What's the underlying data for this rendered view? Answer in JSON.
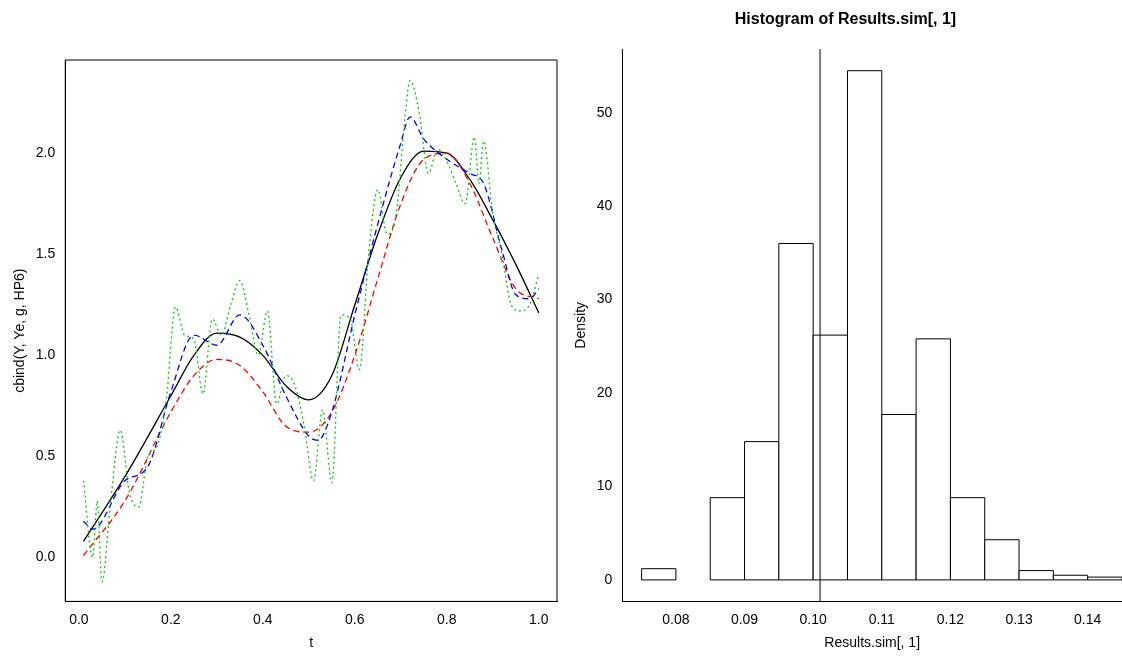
{
  "chart_data": [
    {
      "type": "line",
      "xlabel": "t",
      "ylabel": "cbind(Y, Ye, g, HP6)",
      "xlim": [
        -0.0296,
        1.0396
      ],
      "ylim": [
        -0.217,
        2.461
      ],
      "xticks": [
        {
          "value": 0,
          "label": "0.0"
        },
        0.2,
        0.4,
        0.6,
        0.8,
        {
          "value": 1,
          "label": "1.0"
        }
      ],
      "yticks": [
        {
          "value": 0,
          "label": "0.0"
        },
        0.5,
        {
          "value": 1,
          "label": "1.0"
        },
        1.5,
        {
          "value": 2,
          "label": "2.0"
        }
      ],
      "grid": false,
      "legend": false,
      "marker": "none",
      "series": [
        {
          "color": "#00cd00",
          "line_style": "dotted",
          "x": [
            0.01,
            0.03,
            0.04,
            0.05,
            0.07,
            0.09,
            0.11,
            0.13,
            0.15,
            0.17,
            0.19,
            0.21,
            0.23,
            0.25,
            0.27,
            0.29,
            0.31,
            0.33,
            0.35,
            0.37,
            0.39,
            0.41,
            0.43,
            0.45,
            0.47,
            0.49,
            0.51,
            0.53,
            0.55,
            0.57,
            0.59,
            0.61,
            0.63,
            0.65,
            0.67,
            0.69,
            0.71,
            0.72,
            0.74,
            0.76,
            0.78,
            0.8,
            0.82,
            0.84,
            0.86,
            0.87,
            0.88,
            0.9,
            0.92,
            0.94,
            0.96,
            0.98,
            1.0
          ],
          "values": [
            0.38,
            0.0,
            0.28,
            -0.12,
            0.3,
            0.63,
            0.32,
            0.25,
            0.5,
            0.55,
            0.78,
            1.24,
            1.1,
            1.08,
            0.81,
            1.18,
            1.1,
            1.25,
            1.37,
            1.2,
            1.0,
            1.22,
            0.76,
            0.9,
            0.85,
            0.65,
            0.38,
            0.73,
            0.37,
            1.2,
            1.18,
            0.93,
            1.5,
            1.82,
            1.6,
            1.7,
            2.2,
            2.36,
            2.2,
            1.9,
            2.02,
            1.96,
            1.85,
            1.75,
            2.08,
            1.85,
            2.06,
            1.7,
            1.5,
            1.25,
            1.22,
            1.25,
            1.4
          ]
        },
        {
          "color": "#0000ff",
          "line_style": "dashed",
          "x": [
            0.01,
            0.03,
            0.1,
            0.15,
            0.2,
            0.25,
            0.3,
            0.35,
            0.4,
            0.45,
            0.5,
            0.52,
            0.55,
            0.6,
            0.65,
            0.7,
            0.72,
            0.75,
            0.8,
            0.85,
            0.88,
            0.92,
            0.95,
            0.98,
            1.0
          ],
          "values": [
            0.18,
            0.14,
            0.38,
            0.45,
            0.82,
            1.1,
            1.05,
            1.2,
            1.05,
            0.8,
            0.6,
            0.58,
            0.72,
            1.2,
            1.65,
            2.05,
            2.18,
            2.07,
            1.97,
            1.9,
            1.85,
            1.52,
            1.3,
            1.28,
            1.33
          ]
        },
        {
          "color": "#ff0000",
          "line_style": "dashed",
          "x": [
            0.01,
            0.1,
            0.2,
            0.25,
            0.3,
            0.35,
            0.4,
            0.45,
            0.5,
            0.55,
            0.6,
            0.65,
            0.7,
            0.75,
            0.8,
            0.85,
            0.9,
            0.95,
            1.0
          ],
          "values": [
            0.01,
            0.28,
            0.72,
            0.9,
            0.98,
            0.95,
            0.82,
            0.65,
            0.62,
            0.72,
            1.0,
            1.38,
            1.75,
            1.97,
            2.0,
            1.85,
            1.58,
            1.33,
            1.28
          ]
        },
        {
          "color": "#000000",
          "line_style": "solid",
          "x": [
            0.01,
            0.1,
            0.2,
            0.25,
            0.3,
            0.35,
            0.4,
            0.45,
            0.5,
            0.55,
            0.6,
            0.65,
            0.7,
            0.75,
            0.8,
            0.85,
            0.9,
            0.95,
            1.0
          ],
          "values": [
            0.08,
            0.4,
            0.8,
            1.0,
            1.11,
            1.09,
            1.0,
            0.85,
            0.78,
            0.9,
            1.25,
            1.6,
            1.88,
            2.01,
            2.0,
            1.87,
            1.67,
            1.45,
            1.21
          ]
        }
      ]
    },
    {
      "type": "histogram",
      "title": "Histogram of Results.sim[, 1]",
      "xlabel": "Results.sim[, 1]",
      "ylabel": "Density",
      "bins": [
        0.075,
        0.08,
        0.085,
        0.09,
        0.095,
        0.1,
        0.105,
        0.11,
        0.115,
        0.12,
        0.125,
        0.13,
        0.135,
        0.14,
        0.145
      ],
      "values": [
        1.2,
        0,
        8.8,
        14.8,
        36,
        26.2,
        54.5,
        17.7,
        25.8,
        8.8,
        4.3,
        1.0,
        0.5,
        0.3
      ],
      "color": "#ffffff",
      "xlim": [
        0.0722,
        0.145
      ],
      "ylim": [
        -2.3,
        56.8
      ],
      "xticks": [
        0.08,
        0.09,
        {
          "value": 0.1,
          "label": "0.10"
        },
        0.11,
        0.12,
        0.13,
        0.14
      ],
      "yticks": [
        0,
        10,
        20,
        30,
        40,
        50
      ],
      "grid": false,
      "legend": false,
      "ref_lines": [
        {
          "axis": "x",
          "value": 0.101,
          "color": "#000000"
        }
      ]
    }
  ]
}
